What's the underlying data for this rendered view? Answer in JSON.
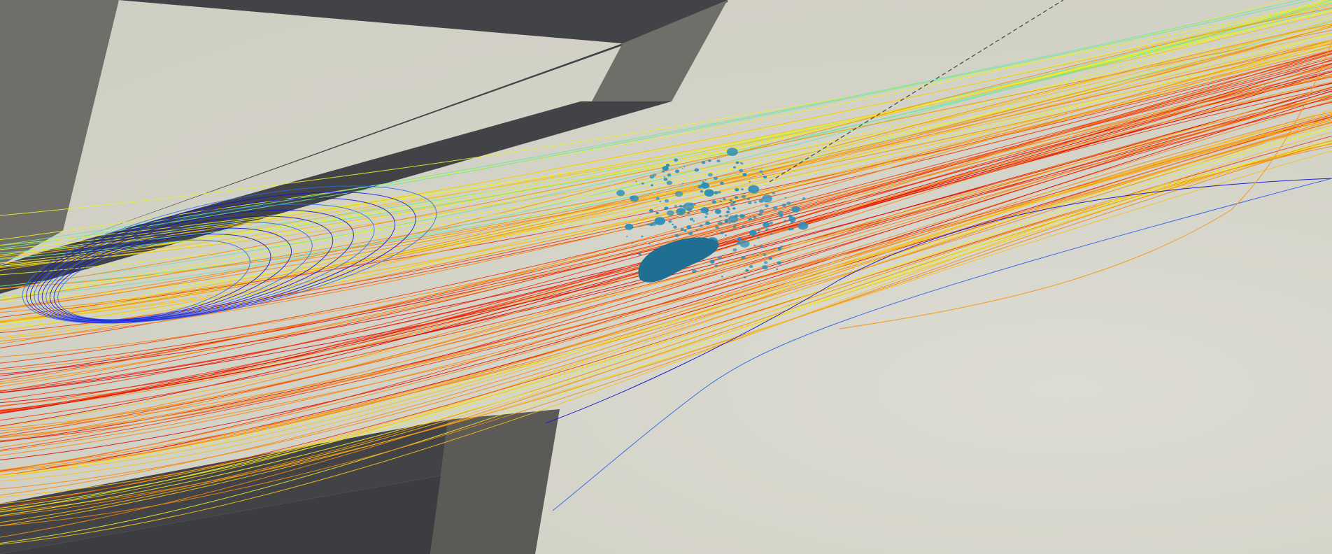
{
  "scene": {
    "background_color": "#d3d2c6",
    "geometry_dark_color": "#424347",
    "geometry_side_color": "#6f6e68",
    "geometry_side_light_color": "#5b5a57",
    "particle_color": "#2e8fb8",
    "streamline_colormap": [
      "#1010e0",
      "#2a6cf0",
      "#2fc3e8",
      "#6ee7a0",
      "#e8f030",
      "#f5c21a",
      "#f58a10",
      "#f03a10",
      "#e00a0a"
    ],
    "streamline_count": 120
  }
}
